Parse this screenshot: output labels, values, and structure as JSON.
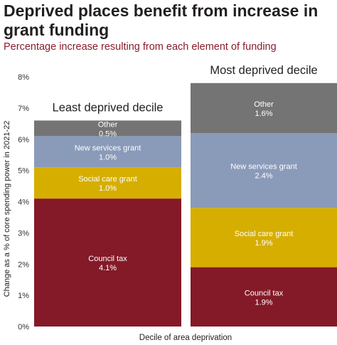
{
  "title": "Deprived places benefit from increase in grant funding",
  "subtitle": "Percentage increase resulting from each element of funding",
  "chart_data": {
    "type": "bar",
    "stacked": true,
    "categories": [
      "Least deprived decile",
      "Most deprived decile"
    ],
    "series": [
      {
        "name": "Council tax",
        "values": [
          4.1,
          1.9
        ],
        "labels": [
          "4.1%",
          "1.9%"
        ],
        "color": "#841a28"
      },
      {
        "name": "Social care grant",
        "values": [
          1.0,
          1.9
        ],
        "labels": [
          "1.0%",
          "1.9%"
        ],
        "color": "#d6ae00"
      },
      {
        "name": "New services grant",
        "values": [
          1.0,
          2.4
        ],
        "labels": [
          "1.0%",
          "2.4%"
        ],
        "color": "#8a9ab9"
      },
      {
        "name": "Other",
        "values": [
          0.5,
          1.6
        ],
        "labels": [
          "0.5%",
          "1.6%"
        ],
        "color": "#747474"
      }
    ],
    "xlabel": "Decile of area deprivation",
    "ylabel": "Change as a % of core spending power in 2021-22",
    "ylim": [
      0,
      8
    ],
    "yticks": [
      {
        "value": 0,
        "label": "0%"
      },
      {
        "value": 1,
        "label": "1%"
      },
      {
        "value": 2,
        "label": "2%"
      },
      {
        "value": 3,
        "label": "3%"
      },
      {
        "value": 4,
        "label": "4%"
      },
      {
        "value": 5,
        "label": "5%"
      },
      {
        "value": 6,
        "label": "6%"
      },
      {
        "value": 7,
        "label": "7%"
      },
      {
        "value": 8,
        "label": "8%"
      }
    ],
    "grid": false,
    "legend": "none"
  }
}
